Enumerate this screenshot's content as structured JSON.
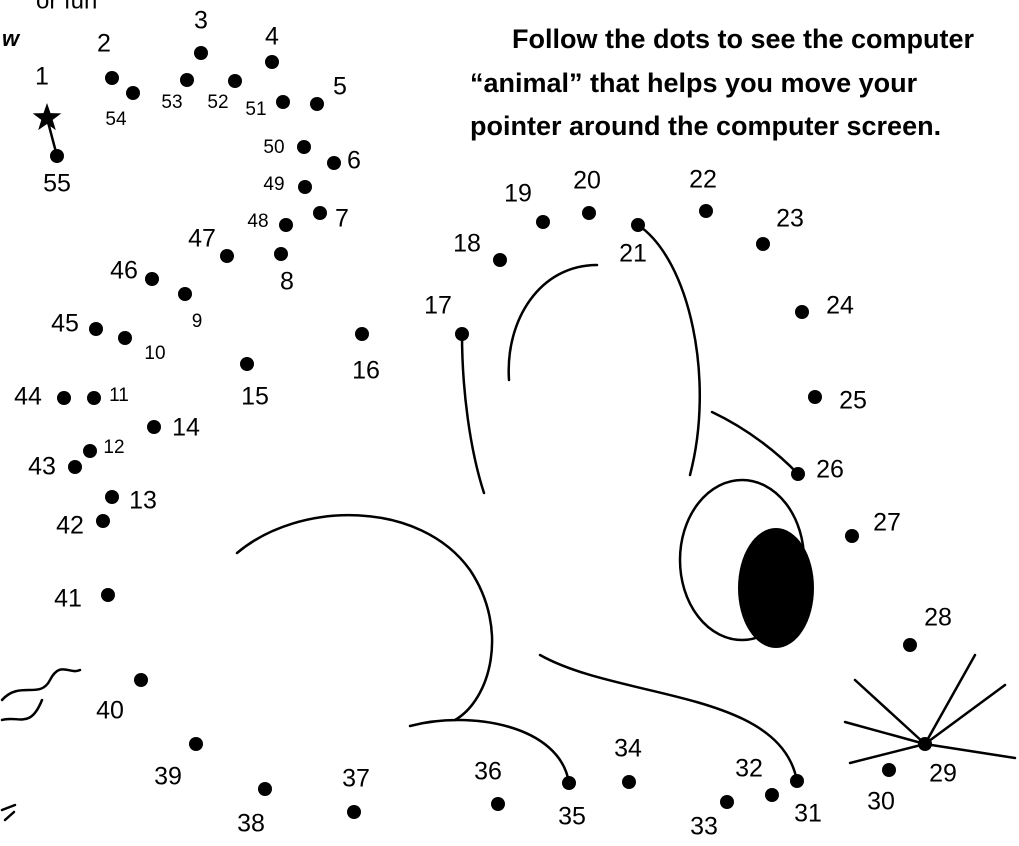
{
  "header": {
    "fragments": [
      "or fun",
      "w"
    ]
  },
  "instructions": {
    "lines": [
      "Follow the dots to see the computer",
      "“animal” that helps you move your",
      "pointer around the computer screen."
    ]
  },
  "dots": [
    "1",
    "2",
    "3",
    "4",
    "5",
    "6",
    "7",
    "8",
    "9",
    "10",
    "11",
    "12",
    "13",
    "14",
    "15",
    "16",
    "17",
    "18",
    "19",
    "20",
    "21",
    "22",
    "23",
    "24",
    "25",
    "26",
    "27",
    "28",
    "29",
    "30",
    "31",
    "32",
    "33",
    "34",
    "35",
    "36",
    "37",
    "38",
    "39",
    "40",
    "41",
    "42",
    "43",
    "44",
    "45",
    "46",
    "47",
    "48",
    "49",
    "50",
    "51",
    "52",
    "53",
    "54",
    "55"
  ]
}
